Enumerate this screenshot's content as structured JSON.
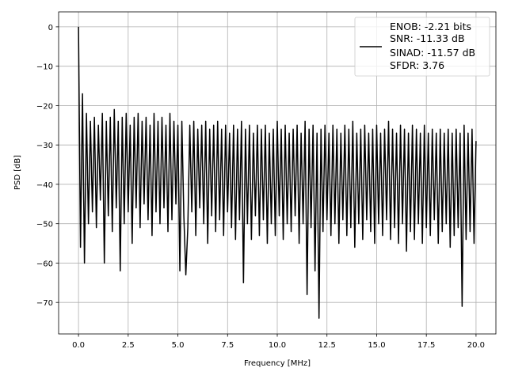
{
  "chart_data": {
    "type": "line",
    "title": "",
    "xlabel": "Frequency [MHz]",
    "ylabel": "PSD [dB]",
    "xlim": [
      -1.0,
      21.0
    ],
    "ylim": [
      -78,
      3.8
    ],
    "grid": true,
    "xticks": [
      0.0,
      2.5,
      5.0,
      7.5,
      10.0,
      12.5,
      15.0,
      17.5,
      20.0
    ],
    "xtick_labels": [
      "0.0",
      "2.5",
      "5.0",
      "7.5",
      "10.0",
      "12.5",
      "15.0",
      "17.5",
      "20.0"
    ],
    "yticks": [
      0,
      -10,
      -20,
      -30,
      -40,
      -50,
      -60,
      -70
    ],
    "ytick_labels": [
      "0",
      "−10",
      "−20",
      "−30",
      "−40",
      "−50",
      "−60",
      "−70"
    ],
    "legend": {
      "placement": "top-right",
      "entries": [
        "ENOB: -2.21 bits",
        "SNR: -11.33 dB",
        "SINAD: -11.57 dB",
        "SFDR: 3.76"
      ]
    },
    "series": [
      {
        "name": "PSD",
        "color": "#000000",
        "x_start": 0.0,
        "x_step": 0.1,
        "values": [
          0,
          -56,
          -17,
          -60,
          -22,
          -50,
          -24,
          -47,
          -23,
          -51,
          -25,
          -44,
          -22,
          -60,
          -24,
          -48,
          -23,
          -52,
          -21,
          -46,
          -24,
          -62,
          -23,
          -50,
          -22,
          -47,
          -25,
          -55,
          -23,
          -46,
          -22,
          -51,
          -24,
          -45,
          -23,
          -49,
          -25,
          -53,
          -22,
          -47,
          -24,
          -50,
          -23,
          -46,
          -25,
          -52,
          -22,
          -49,
          -24,
          -45,
          -25,
          -62,
          -24,
          -48,
          -63,
          -51,
          -25,
          -47,
          -24,
          -53,
          -26,
          -46,
          -25,
          -50,
          -24,
          -55,
          -26,
          -48,
          -25,
          -52,
          -24,
          -49,
          -26,
          -53,
          -25,
          -47,
          -27,
          -51,
          -25,
          -54,
          -26,
          -49,
          -24,
          -65,
          -26,
          -50,
          -25,
          -54,
          -27,
          -48,
          -25,
          -53,
          -26,
          -49,
          -25,
          -55,
          -27,
          -50,
          -26,
          -53,
          -24,
          -48,
          -26,
          -54,
          -25,
          -50,
          -27,
          -52,
          -26,
          -48,
          -25,
          -55,
          -27,
          -50,
          -24,
          -68,
          -26,
          -51,
          -25,
          -62,
          -27,
          -74,
          -26,
          -52,
          -25,
          -49,
          -27,
          -53,
          -25,
          -50,
          -26,
          -55,
          -27,
          -49,
          -25,
          -53,
          -26,
          -51,
          -24,
          -56,
          -27,
          -50,
          -26,
          -54,
          -25,
          -49,
          -27,
          -52,
          -26,
          -55,
          -25,
          -50,
          -27,
          -53,
          -26,
          -49,
          -24,
          -54,
          -26,
          -51,
          -27,
          -55,
          -25,
          -50,
          -26,
          -57,
          -27,
          -52,
          -25,
          -54,
          -26,
          -50,
          -27,
          -55,
          -25,
          -51,
          -27,
          -53,
          -26,
          -49,
          -27,
          -55,
          -26,
          -52,
          -27,
          -50,
          -26,
          -56,
          -27,
          -53,
          -26,
          -51,
          -27,
          -71,
          -25,
          -54,
          -27,
          -52,
          -26,
          -55,
          -29
        ]
      }
    ]
  }
}
